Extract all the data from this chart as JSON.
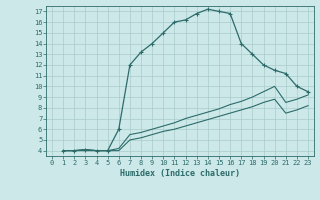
{
  "xlabel": "Humidex (Indice chaleur)",
  "ylabel": "",
  "bg_color": "#cce8e8",
  "line_color": "#2d6b6b",
  "grid_color": "#aacccc",
  "xlim": [
    -0.5,
    23.5
  ],
  "ylim": [
    3.5,
    17.5
  ],
  "xticks": [
    0,
    1,
    2,
    3,
    4,
    5,
    6,
    7,
    8,
    9,
    10,
    11,
    12,
    13,
    14,
    15,
    16,
    17,
    18,
    19,
    20,
    21,
    22,
    23
  ],
  "yticks": [
    4,
    5,
    6,
    7,
    8,
    9,
    10,
    11,
    12,
    13,
    14,
    15,
    16,
    17
  ],
  "curve1_x": [
    1,
    2,
    3,
    4,
    5,
    6,
    7,
    8,
    9,
    10,
    11,
    12,
    13,
    14,
    15,
    16,
    17,
    18,
    19,
    20,
    21,
    22,
    23
  ],
  "curve1_y": [
    4,
    4,
    4.1,
    4,
    4,
    6.0,
    12.0,
    13.2,
    14.0,
    15.0,
    16.0,
    16.2,
    16.8,
    17.2,
    17.0,
    16.8,
    14.0,
    13.0,
    12.0,
    11.5,
    11.2,
    10.0,
    9.5
  ],
  "curve2_x": [
    1,
    2,
    3,
    4,
    5,
    6,
    7,
    8,
    9,
    10,
    11,
    12,
    13,
    14,
    15,
    16,
    17,
    18,
    19,
    20,
    21,
    22,
    23
  ],
  "curve2_y": [
    4.0,
    4.0,
    4.1,
    4.0,
    4.0,
    4.2,
    5.5,
    5.7,
    6.0,
    6.3,
    6.6,
    7.0,
    7.3,
    7.6,
    7.9,
    8.3,
    8.6,
    9.0,
    9.5,
    10.0,
    8.5,
    8.8,
    9.2
  ],
  "curve3_x": [
    1,
    2,
    3,
    4,
    5,
    6,
    7,
    8,
    9,
    10,
    11,
    12,
    13,
    14,
    15,
    16,
    17,
    18,
    19,
    20,
    21,
    22,
    23
  ],
  "curve3_y": [
    4.0,
    4.0,
    4.0,
    4.0,
    4.0,
    4.0,
    5.0,
    5.2,
    5.5,
    5.8,
    6.0,
    6.3,
    6.6,
    6.9,
    7.2,
    7.5,
    7.8,
    8.1,
    8.5,
    8.8,
    7.5,
    7.8,
    8.2
  ]
}
